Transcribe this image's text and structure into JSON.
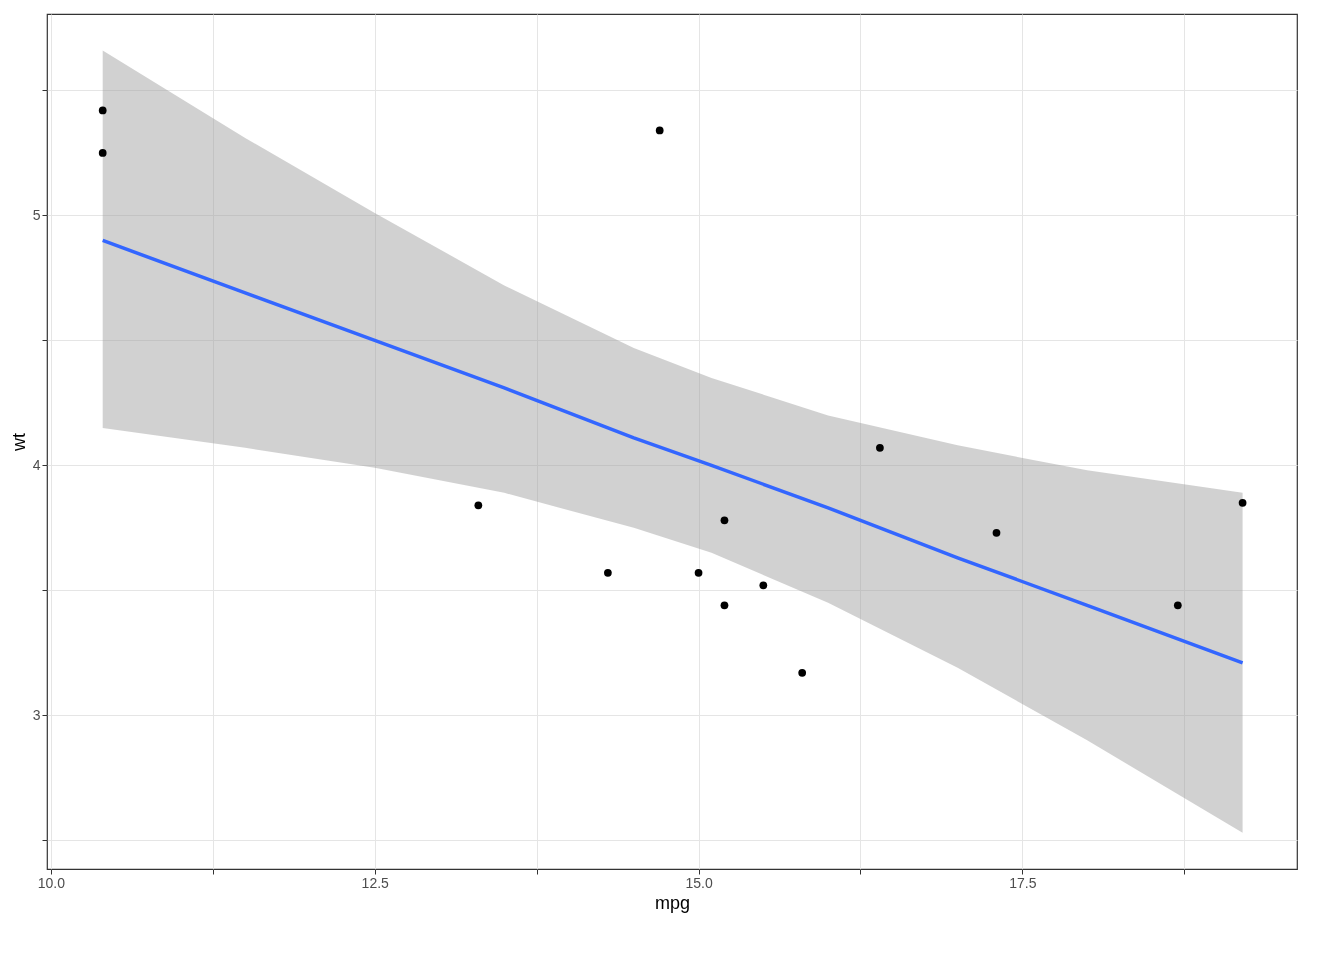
{
  "chart_data": {
    "type": "scatter",
    "xlabel": "mpg",
    "ylabel": "wt",
    "grid": true,
    "marker": "circle",
    "xlim": [
      9.97,
      19.62
    ],
    "ylim": [
      2.385,
      5.806
    ],
    "xticks": [
      {
        "value": 10,
        "label": "10.0"
      },
      {
        "value": 11.25,
        "label": null
      },
      {
        "value": 12.5,
        "label": "12.5"
      },
      {
        "value": 13.75,
        "label": null
      },
      {
        "value": 15,
        "label": "15.0"
      },
      {
        "value": 16.25,
        "label": null
      },
      {
        "value": 17.5,
        "label": "17.5"
      },
      {
        "value": 18.75,
        "label": null
      }
    ],
    "yticks": [
      {
        "value": 2.5,
        "label": null
      },
      3,
      {
        "value": 3.5,
        "label": null
      },
      4,
      {
        "value": 4.5,
        "label": null
      },
      5,
      {
        "value": 5.5,
        "label": null
      }
    ],
    "series": [
      {
        "color": "#000000",
        "x": [
          18.7,
          14.3,
          16.4,
          17.3,
          15.2,
          10.4,
          10.4,
          14.7,
          15.5,
          15.2,
          13.3,
          19.2,
          15.8,
          15.0
        ],
        "values": [
          3.44,
          3.57,
          4.07,
          3.73,
          3.78,
          5.25,
          5.42,
          5.34,
          3.52,
          3.44,
          3.84,
          3.85,
          3.17,
          3.57
        ]
      },
      {
        "type": "line",
        "marker": "none",
        "line_style": "solid",
        "color": "#3366ff",
        "x": [
          10.4,
          11.5,
          12.5,
          13.5,
          14.5,
          15.1,
          16,
          17,
          18,
          19.2
        ],
        "values": [
          4.9,
          4.69,
          4.5,
          4.31,
          4.11,
          4.0,
          3.83,
          3.63,
          3.44,
          3.21
        ],
        "lower": [
          4.15,
          4.07,
          3.99,
          3.89,
          3.75,
          3.65,
          3.45,
          3.19,
          2.9,
          2.53
        ],
        "upper": [
          5.66,
          5.31,
          5.01,
          4.72,
          4.47,
          4.35,
          4.2,
          4.08,
          3.98,
          3.89
        ]
      }
    ]
  }
}
